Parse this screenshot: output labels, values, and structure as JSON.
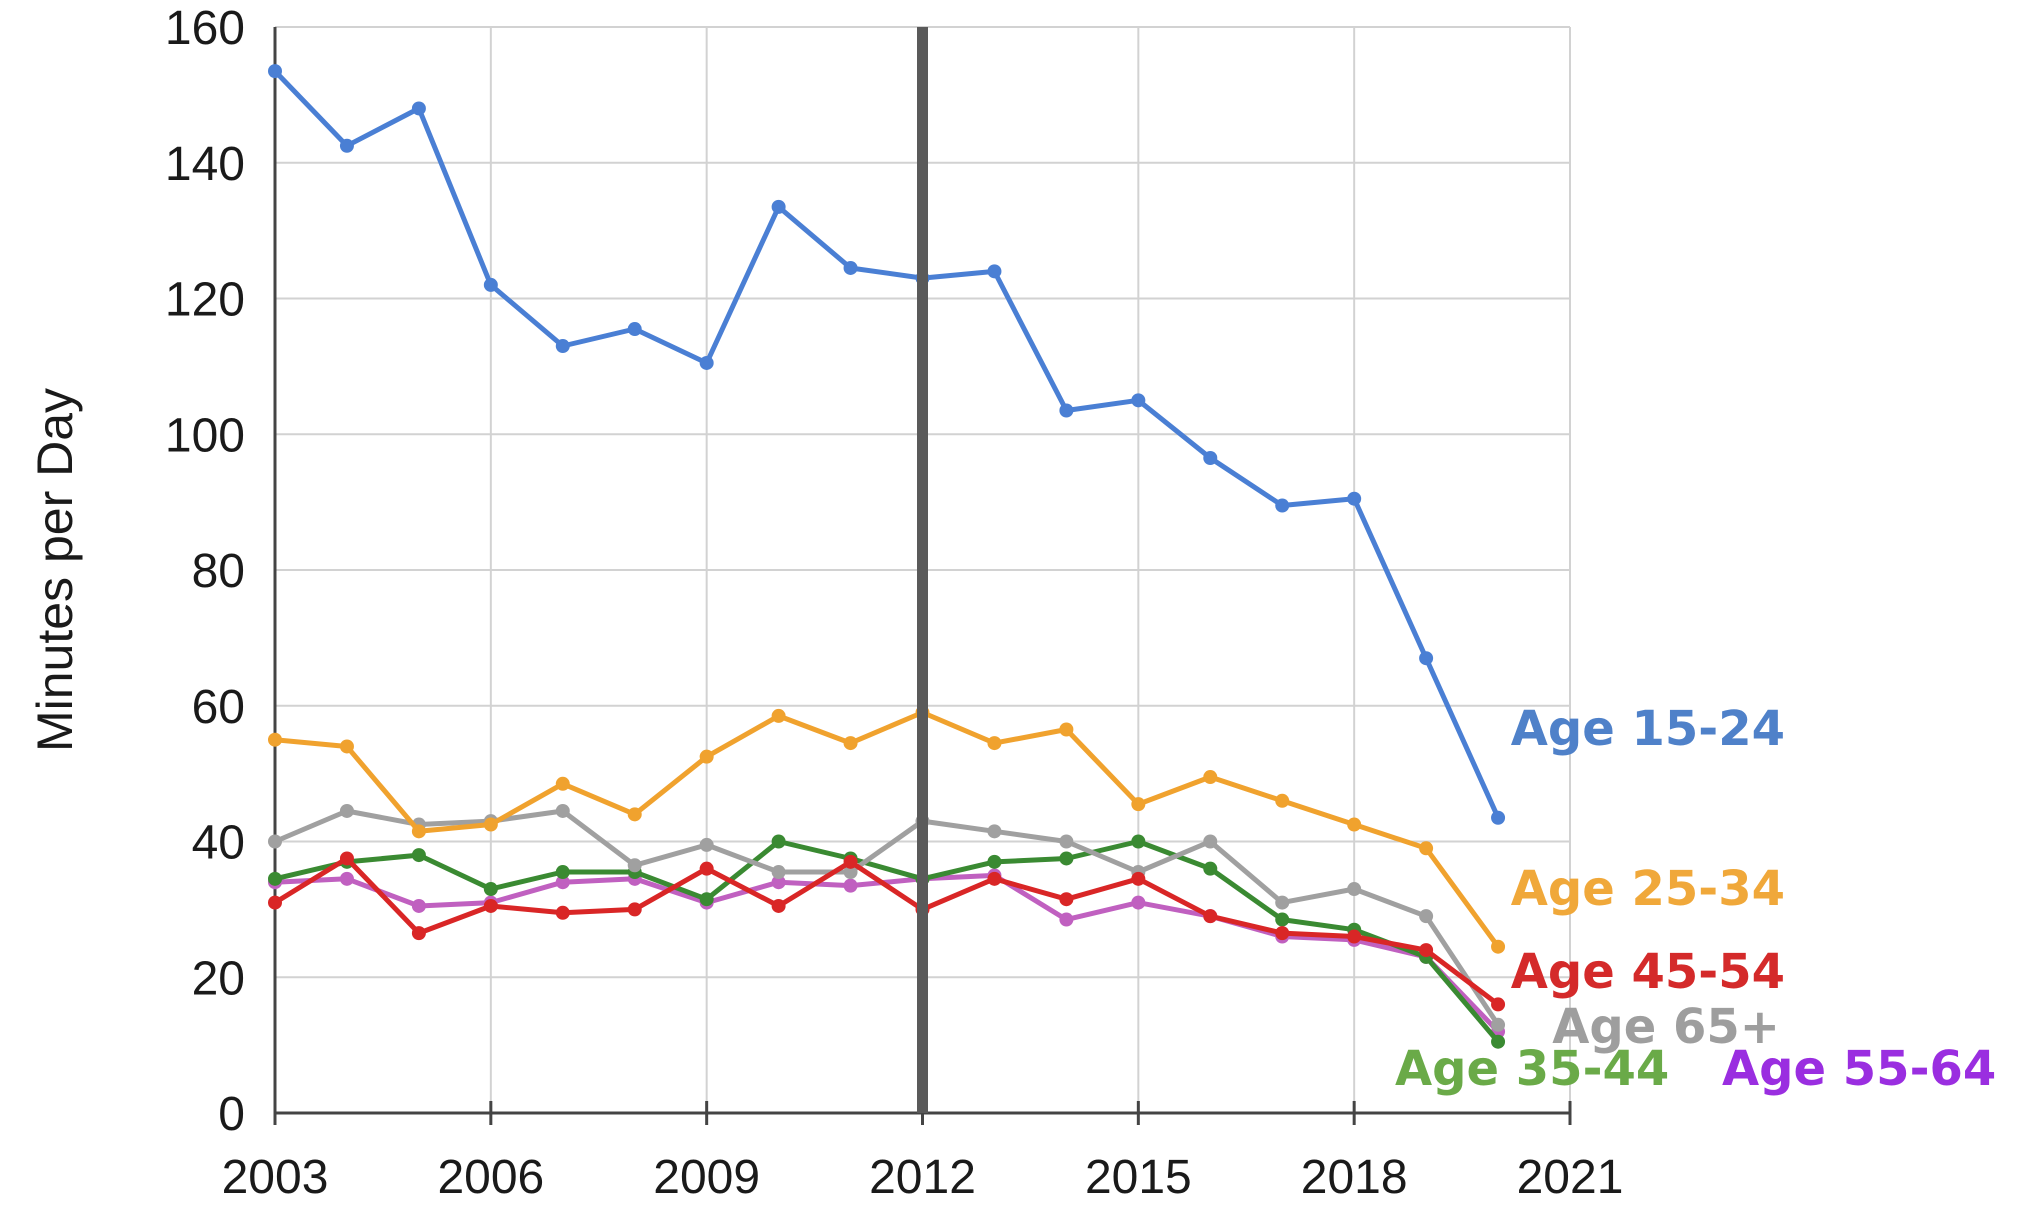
{
  "chart_data": {
    "type": "line",
    "title": "",
    "xlabel": "",
    "ylabel": "Minutes per Day",
    "xlim": [
      2003,
      2021
    ],
    "ylim": [
      0,
      160
    ],
    "x_ticks": [
      2003,
      2006,
      2009,
      2012,
      2015,
      2018,
      2021
    ],
    "y_ticks": [
      0,
      20,
      40,
      60,
      80,
      100,
      120,
      140,
      160
    ],
    "grid": true,
    "legend": "direct labels at right end of lines",
    "reference_line_x": 2012,
    "x": [
      2003,
      2004,
      2005,
      2006,
      2007,
      2008,
      2009,
      2010,
      2011,
      2012,
      2013,
      2014,
      2015,
      2016,
      2017,
      2018,
      2019,
      2020
    ],
    "series": [
      {
        "name": "Age 15-24",
        "color": "#4a7fd4",
        "label_color": "#4f81c9",
        "values": [
          153.5,
          142.5,
          148,
          122,
          113,
          115.5,
          110.5,
          133.5,
          124.5,
          123,
          124,
          103.5,
          105,
          96.5,
          89.5,
          90.5,
          67,
          43.5
        ]
      },
      {
        "name": "Age 25-34",
        "color": "#f0a22e",
        "label_color": "#f0a83a",
        "values": [
          55,
          54,
          41.5,
          42.5,
          48.5,
          44,
          52.5,
          58.5,
          54.5,
          59,
          54.5,
          56.5,
          45.5,
          49.5,
          46,
          42.5,
          39,
          24.5
        ]
      },
      {
        "name": "Age 45-54",
        "color": "#d92626",
        "label_color": "#d42a2a",
        "values": [
          31,
          37.5,
          26.5,
          30.5,
          29.5,
          30,
          36,
          30.5,
          37,
          30,
          34.5,
          31.5,
          34.5,
          29,
          26.5,
          26,
          24,
          16
        ]
      },
      {
        "name": "Age 65+",
        "color": "#a0a0a0",
        "label_color": "#9e9e9e",
        "values": [
          40,
          44.5,
          42.5,
          43,
          44.5,
          36.5,
          39.5,
          35.5,
          35.5,
          43,
          41.5,
          40,
          35.5,
          40,
          31,
          33,
          29,
          13
        ]
      },
      {
        "name": "Age 35-44",
        "color": "#3a8a32",
        "label_color": "#6aaa48",
        "values": [
          34.5,
          37,
          38,
          33,
          35.5,
          35.5,
          31.5,
          40,
          37.5,
          34.5,
          37,
          37.5,
          40,
          36,
          28.5,
          27,
          23,
          10.5
        ]
      },
      {
        "name": "Age 55-64",
        "color": "#c060c0",
        "label_color": "#9a2ee0",
        "values": [
          34,
          34.5,
          30.5,
          31,
          34,
          34.5,
          31,
          34,
          33.5,
          34.5,
          35,
          28.5,
          31,
          29,
          26,
          25.5,
          23,
          12
        ]
      }
    ]
  }
}
